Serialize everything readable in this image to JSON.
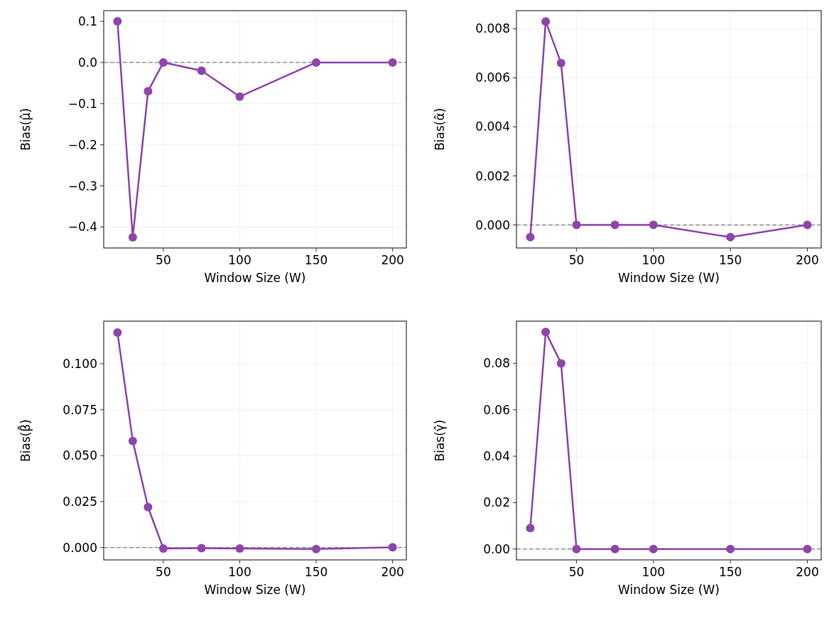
{
  "chart_data": [
    {
      "type": "line",
      "xlabel": "Window Size (W)",
      "ylabel": "Bias(μ̂)",
      "x": [
        20,
        30,
        40,
        50,
        75,
        100,
        150,
        200
      ],
      "series": [
        {
          "color": "#8e44ad",
          "values": [
            0.1,
            -0.425,
            -0.07,
            0,
            -0.02,
            -0.083,
            0,
            0
          ]
        }
      ],
      "xlim": [
        11,
        209
      ],
      "xticks": [
        50,
        100,
        150,
        200
      ],
      "ylim": [
        -0.451,
        0.126
      ],
      "yticks": [
        {
          "value": -0.4,
          "label": "−0.4"
        },
        {
          "value": -0.3,
          "label": "−0.3"
        },
        {
          "value": -0.2,
          "label": "−0.2"
        },
        {
          "value": -0.1,
          "label": "−0.1"
        },
        {
          "value": 0,
          "label": "0.0"
        },
        0.1
      ],
      "ref_lines": [
        {
          "axis": "y",
          "value": 0,
          "color": "#808080",
          "line_style": "dashed"
        }
      ],
      "grid": true,
      "marker": "circle",
      "line_style": "solid"
    },
    {
      "type": "line",
      "xlabel": "Window Size (W)",
      "ylabel": "Bias(α̂)",
      "x": [
        20,
        30,
        40,
        50,
        75,
        100,
        150,
        200
      ],
      "series": [
        {
          "color": "#8e44ad",
          "values": [
            -0.0005,
            0.0083,
            0.0066,
            0,
            0,
            0,
            -0.0005,
            0
          ]
        }
      ],
      "xlim": [
        11,
        209
      ],
      "xticks": [
        50,
        100,
        150,
        200
      ],
      "ylim": [
        -0.00094,
        0.00874
      ],
      "yticks": [
        {
          "value": 0,
          "label": "0.000"
        },
        0.002,
        0.004,
        0.006,
        0.008
      ],
      "ref_lines": [
        {
          "axis": "y",
          "value": 0,
          "color": "#808080",
          "line_style": "dashed"
        }
      ],
      "grid": true,
      "marker": "circle",
      "line_style": "solid"
    },
    {
      "type": "line",
      "xlabel": "Window Size (W)",
      "ylabel": "Bias(β̂)",
      "x": [
        20,
        30,
        40,
        50,
        75,
        100,
        150,
        200
      ],
      "series": [
        {
          "color": "#8e44ad",
          "values": [
            0.117,
            0.058,
            0.022,
            -0.0005,
            -0.0003,
            -0.0005,
            -0.0008,
            0.0002
          ]
        }
      ],
      "xlim": [
        11,
        209
      ],
      "xticks": [
        50,
        100,
        150,
        200
      ],
      "ylim": [
        -0.0067,
        0.1232
      ],
      "yticks": [
        {
          "value": 0,
          "label": "0.000"
        },
        0.025,
        {
          "value": 0.05,
          "label": "0.050"
        },
        0.075,
        {
          "value": 0.1,
          "label": "0.100"
        }
      ],
      "ref_lines": [
        {
          "axis": "y",
          "value": 0,
          "color": "#808080",
          "line_style": "dashed"
        }
      ],
      "grid": true,
      "marker": "circle",
      "line_style": "solid"
    },
    {
      "type": "line",
      "xlabel": "Window Size (W)",
      "ylabel": "Bias(γ̂)",
      "x": [
        20,
        30,
        40,
        50,
        75,
        100,
        150,
        200
      ],
      "series": [
        {
          "color": "#8e44ad",
          "values": [
            0.009,
            0.0935,
            0.08,
            0,
            0,
            0,
            0,
            0
          ]
        }
      ],
      "xlim": [
        11,
        209
      ],
      "xticks": [
        50,
        100,
        150,
        200
      ],
      "ylim": [
        -0.0047,
        0.0982
      ],
      "yticks": [
        {
          "value": 0,
          "label": "0.00"
        },
        0.02,
        0.04,
        0.06,
        0.08
      ],
      "ref_lines": [
        {
          "axis": "y",
          "value": 0,
          "color": "#808080",
          "line_style": "dashed"
        }
      ],
      "grid": true,
      "marker": "circle",
      "line_style": "solid"
    }
  ]
}
